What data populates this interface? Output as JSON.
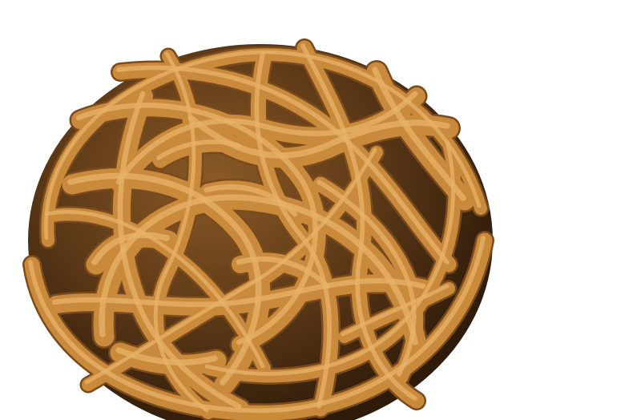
{
  "image": {
    "subject": "wicker-ball",
    "background_color": "#ffffff",
    "colors": {
      "rattan_light": "#e7b36a",
      "rattan_mid": "#c98a3c",
      "rattan_dark": "#7a4a1c",
      "shadow": "#3a2410",
      "interior": "#5a3716"
    }
  }
}
